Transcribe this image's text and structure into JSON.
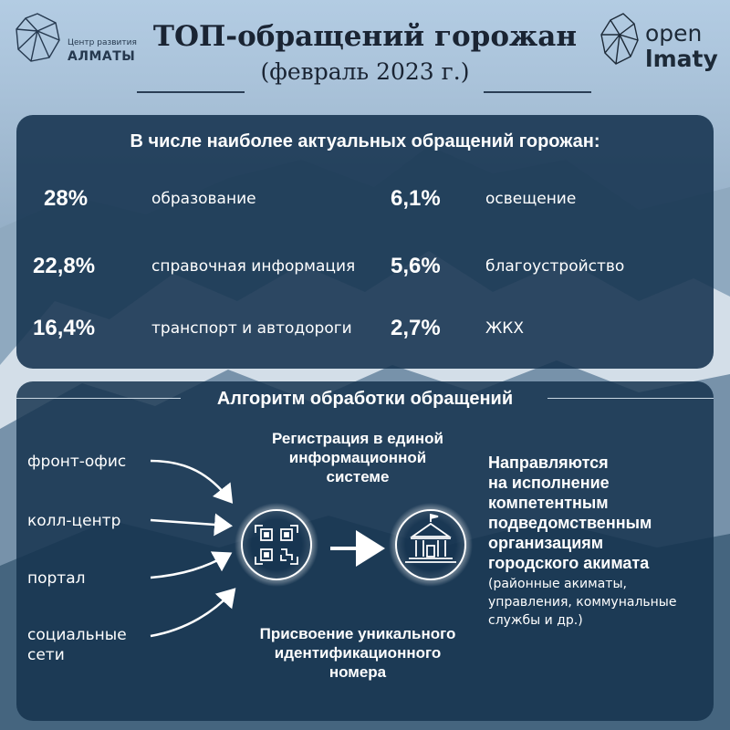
{
  "logos": {
    "left": {
      "line1": "Центр развития",
      "line2": "АЛМАТЫ",
      "icon": "polygon-leopard-icon"
    },
    "right": {
      "line1": "open",
      "line2": "lmaty",
      "icon": "polygon-leopard-icon"
    }
  },
  "header": {
    "title": "ТОП-обращений горожан",
    "subtitle": "(февраль 2023 г.)"
  },
  "top_panel": {
    "heading": "В числе наиболее актуальных обращений горожан:",
    "stats": [
      {
        "percent": "28%",
        "label": "образование"
      },
      {
        "percent": "22,8%",
        "label": "справочная информация"
      },
      {
        "percent": "16,4%",
        "label": "транспорт и автодороги"
      },
      {
        "percent": "6,1%",
        "label": "освещение"
      },
      {
        "percent": "5,6%",
        "label": "благоустройство"
      },
      {
        "percent": "2,7%",
        "label": "ЖКХ"
      }
    ]
  },
  "bottom_panel": {
    "heading": "Алгоритм обработки обращений",
    "sources": [
      "фронт-офис",
      "колл-центр",
      "портал",
      "социальные",
      "сети"
    ],
    "registration": [
      "Регистрация в единой",
      "информационной",
      "системе"
    ],
    "assignment": [
      "Присвоение уникального",
      "идентификационного",
      "номера"
    ],
    "destination_bold": [
      "Направляются",
      "на исполнение",
      "компетентным",
      "подведомственным",
      "организациям",
      "городского акимата"
    ],
    "destination_note": [
      "(районные акиматы,",
      "управления, коммунальные",
      "службы и др.)"
    ],
    "icons": {
      "first": "qr-code-icon",
      "second": "government-building-icon"
    }
  },
  "colors": {
    "panel": "#14324e",
    "title_text": "#1a2433",
    "white": "#ffffff"
  }
}
